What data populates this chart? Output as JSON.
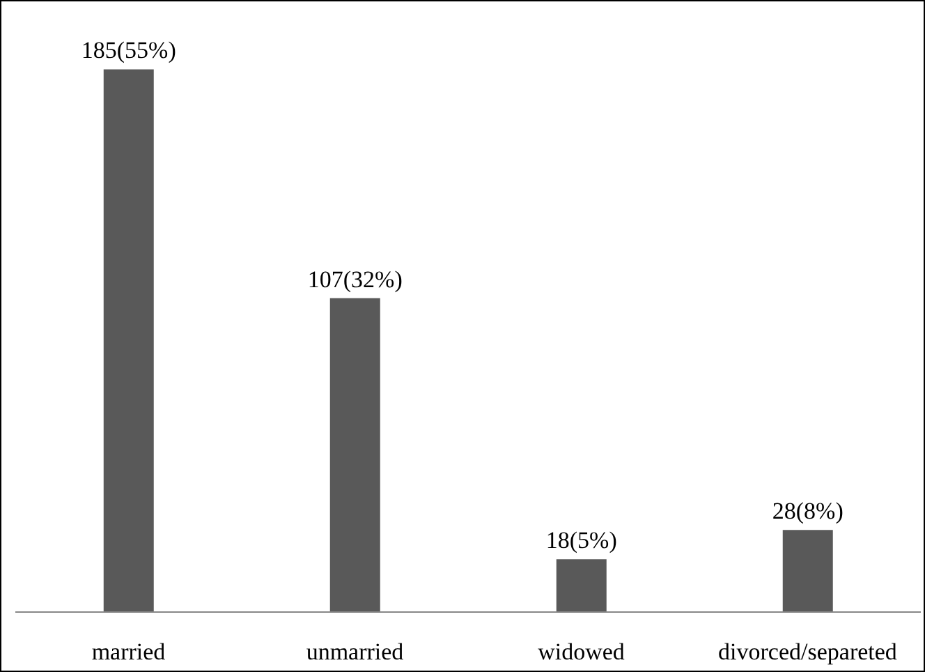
{
  "chart_data": {
    "type": "bar",
    "categories": [
      "married",
      "unmarried",
      "widowed",
      "divorced/separeted"
    ],
    "values": [
      185,
      107,
      18,
      28
    ],
    "value_labels": [
      "185(55%)",
      "107(32%)",
      "18(5%)",
      "28(8%)"
    ],
    "color": "#595959"
  }
}
